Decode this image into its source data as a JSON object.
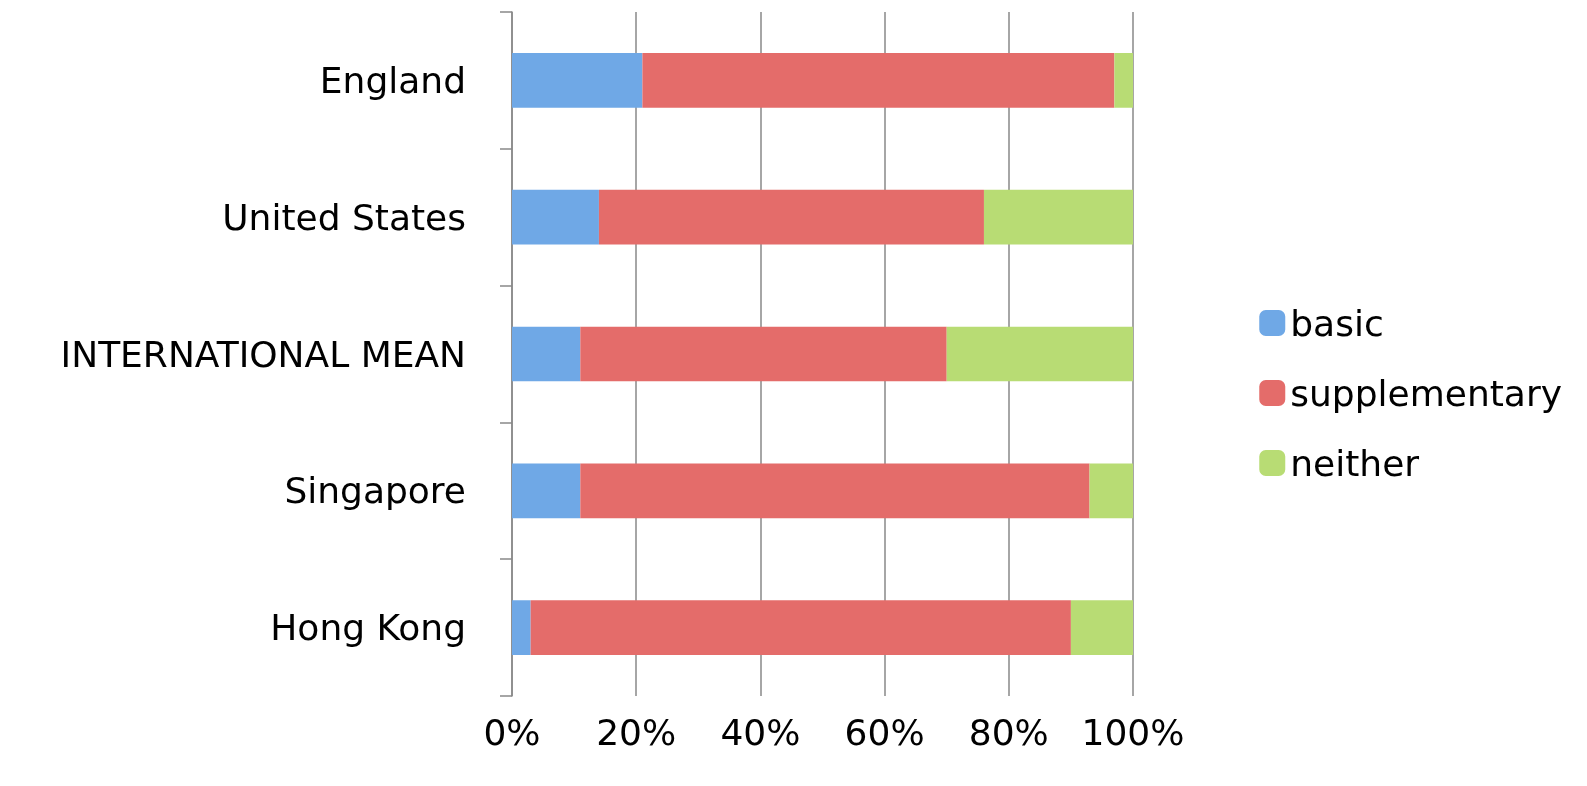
{
  "chart_data": {
    "type": "bar",
    "orientation": "horizontal",
    "stacked": true,
    "categories": [
      "England",
      "United States",
      "INTERNATIONAL MEAN",
      "Singapore",
      "Hong Kong"
    ],
    "series": [
      {
        "name": "basic",
        "color": "#6fa8e6",
        "values": [
          21,
          14,
          11,
          11,
          3
        ]
      },
      {
        "name": "supplementary",
        "color": "#e46c6a",
        "values": [
          76,
          62,
          59,
          82,
          87
        ]
      },
      {
        "name": "neither",
        "color": "#b8dc74",
        "values": [
          3,
          24,
          30,
          7,
          10
        ]
      }
    ],
    "xlim": [
      0,
      100
    ],
    "xticks": [
      {
        "value": 0,
        "label": "0%"
      },
      {
        "value": 20,
        "label": "20%"
      },
      {
        "value": 40,
        "label": "40%"
      },
      {
        "value": 60,
        "label": "60%"
      },
      {
        "value": 80,
        "label": "80%"
      },
      {
        "value": 100,
        "label": "100%"
      }
    ],
    "grid": "x",
    "legend": "right"
  }
}
